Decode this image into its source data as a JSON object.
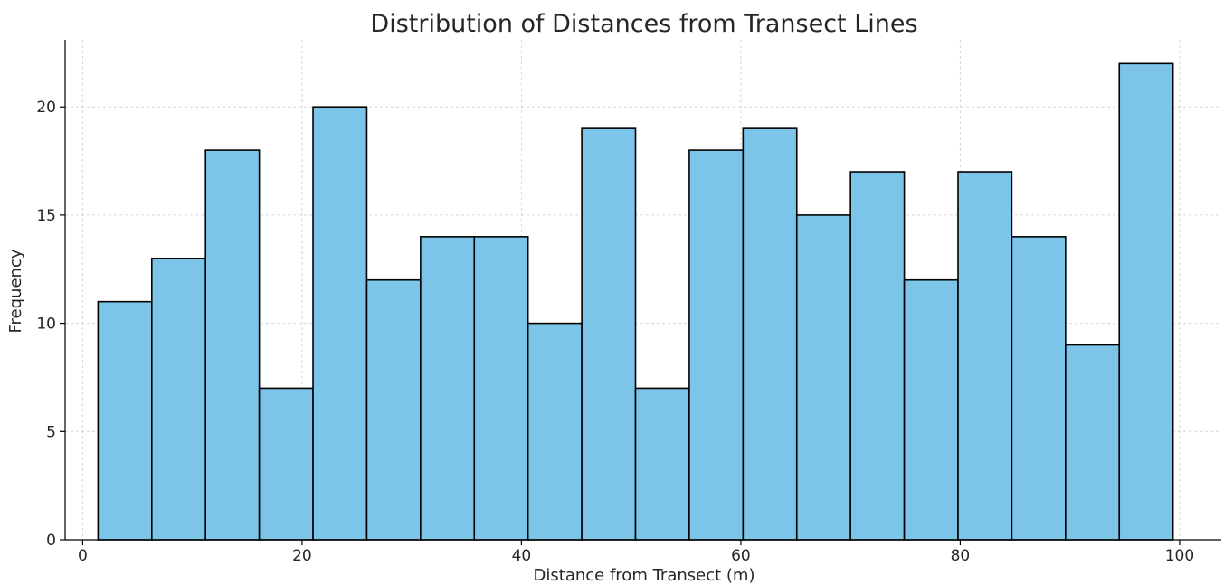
{
  "chart_data": {
    "type": "bar",
    "title": "Distribution of Distances from Transect Lines",
    "xlabel": "Distance from Transect (m)",
    "ylabel": "Frequency",
    "xlim": [
      -1.6,
      103.8
    ],
    "ylim": [
      0,
      23.1
    ],
    "grid": true,
    "x_ticks": [
      0,
      20,
      40,
      60,
      80,
      100
    ],
    "y_ticks": [
      0,
      5,
      10,
      15,
      20
    ],
    "bin_edges": [
      1.4,
      6.3,
      11.2,
      16.1,
      21.0,
      25.9,
      30.8,
      35.7,
      40.6,
      45.5,
      50.4,
      55.3,
      60.2,
      65.1,
      70.0,
      74.9,
      79.8,
      84.7,
      89.6,
      94.5,
      99.4
    ],
    "values": [
      11,
      13,
      18,
      7,
      20,
      12,
      14,
      14,
      10,
      19,
      7,
      18,
      19,
      15,
      17,
      12,
      17,
      14,
      9,
      22
    ],
    "colors": {
      "bar_fill": "#7cc5e8",
      "bar_edge": "#000000",
      "grid": "#d6d6d6"
    }
  }
}
